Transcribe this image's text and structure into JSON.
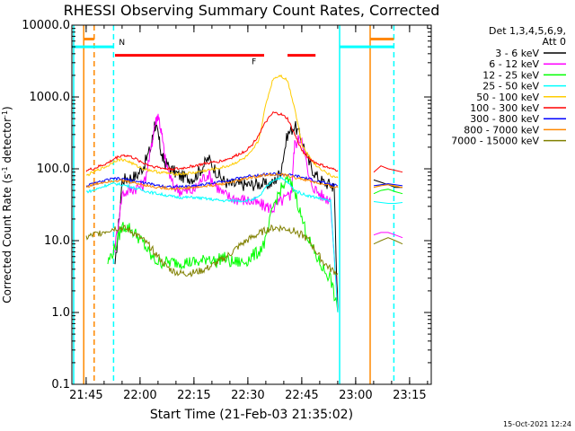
{
  "chart_data": {
    "type": "line",
    "title": "RHESSI Observing Summary Count Rates, Corrected",
    "xlabel": "Start Time (21-Feb-03 21:35:02)",
    "ylabel": "Corrected Count Rate (s⁻¹ detector⁻¹)",
    "ylabel_parts": [
      "Corrected Count Rate (s",
      "-1",
      " detector",
      "-1",
      ")"
    ],
    "yscale": "log",
    "ylim": [
      0.1,
      10000
    ],
    "xlim_min": [
      6,
      106
    ],
    "x_unit": "minutes since 21:35:02",
    "yticks": [
      {
        "v": 0.1,
        "label": "0.1"
      },
      {
        "v": 1,
        "label": "1.0"
      },
      {
        "v": 10,
        "label": "10.0"
      },
      {
        "v": 100,
        "label": "100.0"
      },
      {
        "v": 1000,
        "label": "1000.0"
      },
      {
        "v": 10000,
        "label": "10000.0"
      }
    ],
    "xticks": [
      {
        "v": 9.97,
        "label": "21:45"
      },
      {
        "v": 24.97,
        "label": "22:00"
      },
      {
        "v": 39.97,
        "label": "22:15"
      },
      {
        "v": 54.97,
        "label": "22:30"
      },
      {
        "v": 69.97,
        "label": "22:45"
      },
      {
        "v": 84.97,
        "label": "23:00"
      },
      {
        "v": 99.97,
        "label": "23:15"
      }
    ],
    "legend": {
      "placement": "right",
      "header": [
        "Det 1,3,4,5,6,9,",
        "Att 0"
      ]
    },
    "series": [
      {
        "name": "3 - 6 keV",
        "color": "#000000",
        "x": [
          18,
          20,
          22,
          24,
          26,
          28,
          29,
          30,
          31,
          32,
          34,
          36,
          38,
          40,
          42,
          44,
          46,
          48,
          50,
          52,
          54,
          56,
          58,
          60,
          62,
          64,
          66,
          68,
          70,
          72,
          74,
          76,
          78,
          79,
          80
        ],
        "y": [
          4,
          70,
          75,
          80,
          110,
          200,
          420,
          300,
          150,
          120,
          95,
          80,
          75,
          75,
          100,
          140,
          95,
          70,
          60,
          60,
          60,
          60,
          62,
          60,
          63,
          90,
          300,
          400,
          250,
          120,
          80,
          65,
          60,
          55,
          1
        ]
      },
      {
        "name": "6 - 12 keV",
        "color": "#ff00ff",
        "x": [
          18,
          20,
          22,
          24,
          26,
          28,
          29,
          30,
          31,
          32,
          34,
          36,
          38,
          40,
          42,
          44,
          46,
          48,
          50,
          52,
          54,
          56,
          58,
          60,
          62,
          64,
          66,
          67,
          68,
          70,
          72,
          74,
          76,
          78,
          80
        ],
        "y": [
          8,
          45,
          50,
          55,
          60,
          180,
          400,
          580,
          300,
          130,
          60,
          50,
          48,
          50,
          70,
          85,
          60,
          45,
          40,
          38,
          37,
          35,
          32,
          30,
          28,
          35,
          40,
          45,
          220,
          280,
          70,
          50,
          40,
          38,
          1
        ]
      },
      {
        "name": "12 - 25 keV",
        "color": "#00ff00",
        "x": [
          16,
          18,
          20,
          22,
          24,
          26,
          28,
          30,
          32,
          34,
          36,
          38,
          40,
          42,
          44,
          46,
          48,
          50,
          52,
          54,
          56,
          58,
          60,
          62,
          64,
          66,
          68,
          70,
          72,
          74,
          76,
          78,
          80
        ],
        "y": [
          5,
          8,
          16,
          15,
          12,
          9,
          6,
          5,
          5,
          5,
          5,
          5,
          5,
          5,
          6,
          5,
          6,
          5,
          5,
          5,
          6,
          7,
          10,
          30,
          50,
          70,
          50,
          20,
          10,
          6,
          4,
          3,
          1
        ]
      },
      {
        "name": "25 - 50 keV",
        "color": "#00ffff",
        "x": [
          10,
          12,
          14,
          16,
          18,
          20,
          22,
          24,
          26,
          28,
          30,
          32,
          34,
          36,
          38,
          40,
          42,
          44,
          46,
          48,
          50,
          52,
          54,
          56,
          58,
          60,
          62,
          64,
          66,
          68,
          70,
          72,
          74,
          76,
          78,
          80
        ],
        "y": [
          48,
          50,
          55,
          60,
          62,
          60,
          57,
          53,
          50,
          47,
          45,
          43,
          41,
          40,
          40,
          40,
          39,
          38,
          37,
          36,
          36,
          36,
          36,
          37,
          40,
          55,
          70,
          75,
          65,
          50,
          45,
          42,
          40,
          38,
          35,
          1
        ]
      },
      {
        "name": "50 - 100 keV",
        "color": "#ffcc00",
        "x": [
          10,
          12,
          14,
          16,
          18,
          20,
          22,
          24,
          26,
          28,
          30,
          32,
          34,
          36,
          38,
          40,
          42,
          44,
          46,
          48,
          50,
          52,
          54,
          56,
          58,
          60,
          62,
          64,
          66,
          68,
          70,
          72,
          74,
          76,
          78,
          80
        ],
        "y": [
          80,
          90,
          100,
          110,
          130,
          135,
          125,
          110,
          100,
          95,
          90,
          88,
          85,
          85,
          86,
          88,
          92,
          96,
          100,
          105,
          112,
          125,
          140,
          170,
          250,
          800,
          1800,
          2000,
          1700,
          700,
          220,
          150,
          110,
          95,
          80,
          75
        ]
      },
      {
        "name": "100 - 300 keV",
        "color": "#ff0000",
        "x": [
          10,
          12,
          14,
          16,
          18,
          20,
          22,
          24,
          26,
          28,
          30,
          32,
          34,
          36,
          38,
          40,
          42,
          44,
          46,
          48,
          50,
          52,
          54,
          56,
          58,
          60,
          62,
          64,
          66,
          68,
          70,
          72,
          74,
          76,
          78,
          80
        ],
        "y": [
          95,
          100,
          110,
          120,
          140,
          155,
          150,
          135,
          120,
          110,
          105,
          100,
          100,
          100,
          105,
          110,
          115,
          120,
          125,
          130,
          140,
          155,
          175,
          210,
          300,
          450,
          600,
          580,
          500,
          300,
          180,
          140,
          120,
          110,
          100,
          95
        ]
      },
      {
        "name": "300 - 800 keV",
        "color": "#0000ff",
        "x": [
          10,
          12,
          14,
          16,
          18,
          20,
          22,
          24,
          26,
          28,
          30,
          32,
          34,
          36,
          38,
          40,
          42,
          44,
          46,
          48,
          50,
          52,
          54,
          56,
          58,
          60,
          62,
          64,
          66,
          68,
          70,
          72,
          74,
          76,
          78,
          80
        ],
        "y": [
          58,
          62,
          66,
          70,
          73,
          72,
          70,
          67,
          64,
          61,
          59,
          57,
          56,
          56,
          57,
          58,
          60,
          62,
          64,
          67,
          70,
          73,
          77,
          80,
          82,
          84,
          85,
          84,
          82,
          80,
          76,
          72,
          68,
          64,
          60,
          58
        ]
      },
      {
        "name": "800 - 7000 keV",
        "color": "#ff8800",
        "x": [
          10,
          12,
          14,
          16,
          18,
          20,
          22,
          24,
          26,
          28,
          30,
          32,
          34,
          36,
          38,
          40,
          42,
          44,
          46,
          48,
          50,
          52,
          54,
          56,
          58,
          60,
          62,
          64,
          66,
          68,
          70,
          72,
          74,
          76,
          78,
          80
        ],
        "y": [
          56,
          60,
          64,
          67,
          69,
          68,
          66,
          63,
          60,
          57,
          55,
          54,
          53,
          53,
          54,
          55,
          56,
          58,
          60,
          62,
          65,
          68,
          72,
          76,
          79,
          82,
          84,
          83,
          80,
          76,
          72,
          68,
          64,
          60,
          57,
          55
        ]
      },
      {
        "name": "7000 - 15000 keV",
        "color": "#808000",
        "x": [
          10,
          12,
          14,
          16,
          18,
          20,
          22,
          24,
          26,
          28,
          30,
          32,
          34,
          36,
          38,
          40,
          42,
          44,
          46,
          48,
          50,
          52,
          54,
          56,
          58,
          60,
          62,
          64,
          66,
          68,
          70,
          72,
          74,
          76,
          78,
          80
        ],
        "y": [
          11,
          12,
          13,
          14,
          15,
          15,
          14,
          12,
          10,
          8,
          6,
          4.5,
          3.8,
          3.5,
          3.5,
          3.6,
          3.8,
          4.2,
          4.8,
          5.5,
          6.5,
          8,
          9.5,
          11,
          12.5,
          14,
          15,
          15,
          14.5,
          13.5,
          12,
          10,
          7,
          5,
          4,
          3.5
        ]
      }
    ],
    "series_tail": {
      "x": [
        90,
        92,
        94,
        96,
        98
      ],
      "y": [
        [
          70,
          65,
          60,
          55,
          55
        ],
        [
          12,
          13,
          13,
          12,
          11
        ],
        [
          45,
          50,
          52,
          48,
          45
        ],
        [
          35,
          34,
          33,
          33,
          34
        ],
        [
          55,
          60,
          62,
          58,
          55
        ],
        [
          90,
          110,
          100,
          95,
          90
        ],
        [
          58,
          60,
          62,
          60,
          58
        ],
        [
          55,
          58,
          60,
          57,
          55
        ],
        [
          9,
          10,
          11,
          10,
          9
        ]
      ]
    },
    "markers": {
      "vlines": [
        {
          "x": 6.5,
          "color": "#00ffff",
          "style": "solid"
        },
        {
          "x": 9.3,
          "color": "#ff8800",
          "style": "solid"
        },
        {
          "x": 12.2,
          "color": "#ff8800",
          "style": "dashed"
        },
        {
          "x": 17.6,
          "color": "#00ffff",
          "style": "dashed"
        },
        {
          "x": 80.5,
          "color": "#00ffff",
          "style": "solid"
        },
        {
          "x": 89.0,
          "color": "#ff8800",
          "style": "solid"
        },
        {
          "x": 95.6,
          "color": "#00ffff",
          "style": "dashed"
        }
      ],
      "bars": [
        {
          "x0": 6,
          "x1": 17.6,
          "y": 5000,
          "color": "#00ffff",
          "label": "N"
        },
        {
          "x0": 9.3,
          "x1": 12.2,
          "y": 6400,
          "color": "#ff8800",
          "label": ""
        },
        {
          "x0": 18.0,
          "x1": 59.5,
          "y": 3800,
          "color": "#ff0000",
          "label": "F"
        },
        {
          "x0": 66.0,
          "x1": 73.8,
          "y": 3800,
          "color": "#ff0000",
          "label": ""
        },
        {
          "x0": 80.5,
          "x1": 95.6,
          "y": 5000,
          "color": "#00ffff",
          "label": ""
        },
        {
          "x0": 89.0,
          "x1": 95.6,
          "y": 6400,
          "color": "#ff8800",
          "label": ""
        }
      ]
    },
    "grid": false
  },
  "footer": {
    "timestamp": "15-Oct-2021 12:24"
  }
}
